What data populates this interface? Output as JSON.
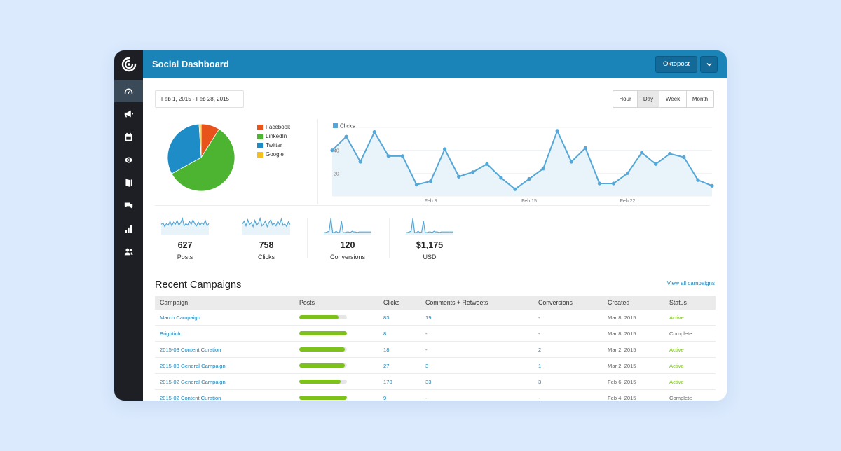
{
  "app": {
    "title": "Social Dashboard",
    "account": "Oktopost"
  },
  "colors": {
    "topbar": "#1a84b8",
    "sidebar": "#1d1f24",
    "accent_green": "#7cc21a",
    "link": "#1a84b8"
  },
  "sidebar": {
    "items": [
      {
        "icon": "dashboard-gauge-icon",
        "active": true
      },
      {
        "icon": "megaphone-icon",
        "active": false
      },
      {
        "icon": "calendar-icon",
        "active": false
      },
      {
        "icon": "eye-icon",
        "active": false
      },
      {
        "icon": "book-icon",
        "active": false
      },
      {
        "icon": "chat-bubbles-icon",
        "active": false
      },
      {
        "icon": "bar-chart-icon",
        "active": false
      },
      {
        "icon": "users-icon",
        "active": false
      }
    ]
  },
  "filters": {
    "date_range": "Feb 1, 2015 - Feb 28, 2015",
    "ranges": [
      {
        "label": "Hour",
        "active": false
      },
      {
        "label": "Day",
        "active": true
      },
      {
        "label": "Week",
        "active": false
      },
      {
        "label": "Month",
        "active": false
      }
    ]
  },
  "pie_chart": {
    "chart_data": {
      "type": "pie",
      "slices": [
        {
          "label": "Facebook",
          "value": 9,
          "color": "#e8531c"
        },
        {
          "label": "LinkedIn",
          "value": 58,
          "color": "#4db431"
        },
        {
          "label": "Twitter",
          "value": 32,
          "color": "#1d8cc7"
        },
        {
          "label": "Google",
          "value": 1,
          "color": "#f5bf1f"
        }
      ]
    }
  },
  "line_chart": {
    "chart_data": {
      "type": "area",
      "series": [
        {
          "name": "Clicks",
          "color": "#54a7d6",
          "values": [
            40,
            52,
            30,
            56,
            35,
            35,
            10,
            13,
            41,
            17,
            21,
            28,
            16,
            6,
            15,
            24,
            57,
            30,
            42,
            11,
            11,
            20,
            38,
            28,
            37,
            34,
            14,
            9
          ]
        }
      ],
      "x_tick_labels": [
        {
          "label": "Feb 8",
          "day_index": 7
        },
        {
          "label": "Feb 15",
          "day_index": 14
        },
        {
          "label": "Feb 22",
          "day_index": 21
        }
      ],
      "y_tick_labels": [
        20,
        40
      ],
      "ylim": [
        0,
        60
      ],
      "grid": true,
      "legend": "top-left"
    }
  },
  "stats": [
    {
      "value": "627",
      "label": "Posts",
      "spark": [
        14,
        16,
        11,
        15,
        13,
        18,
        12,
        17,
        14,
        19,
        13,
        16,
        22,
        12,
        15,
        13,
        18,
        14,
        20,
        15,
        12,
        17,
        13,
        16,
        14,
        19,
        12,
        15
      ]
    },
    {
      "value": "758",
      "label": "Clicks",
      "spark": [
        16,
        20,
        13,
        22,
        15,
        18,
        12,
        21,
        14,
        17,
        24,
        13,
        16,
        20,
        12,
        18,
        22,
        14,
        17,
        13,
        20,
        15,
        23,
        14,
        16,
        12,
        19,
        15
      ]
    },
    {
      "value": "120",
      "label": "Conversions",
      "spark": [
        3,
        3,
        4,
        5,
        24,
        3,
        3,
        5,
        3,
        4,
        20,
        3,
        3,
        4,
        4,
        3,
        5,
        4,
        4,
        3,
        4,
        4,
        4,
        4,
        4,
        4,
        4,
        4
      ]
    },
    {
      "value": "$1,175",
      "label": "USD",
      "spark": [
        3,
        3,
        4,
        5,
        24,
        3,
        3,
        5,
        3,
        4,
        20,
        3,
        3,
        4,
        4,
        3,
        5,
        4,
        4,
        3,
        4,
        4,
        4,
        4,
        4,
        4,
        4,
        4
      ]
    }
  ],
  "campaigns": {
    "title": "Recent Campaigns",
    "view_all": "View all campaigns",
    "columns": [
      "Campaign",
      "Posts",
      "Clicks",
      "Comments + Retweets",
      "Conversions",
      "Created",
      "Status"
    ],
    "rows": [
      {
        "name": "March Campaign",
        "posts_fraction": 0.82,
        "clicks": "83",
        "comments": "19",
        "conversions": "-",
        "created": "Mar 8, 2015",
        "status": "Active"
      },
      {
        "name": "Brightinfo",
        "posts_fraction": 1.0,
        "clicks": "8",
        "comments": "-",
        "conversions": "-",
        "created": "Mar 8, 2015",
        "status": "Complete"
      },
      {
        "name": "2015-03 Content Curation",
        "posts_fraction": 0.96,
        "clicks": "18",
        "comments": "-",
        "conversions": "2",
        "created": "Mar 2, 2015",
        "status": "Active"
      },
      {
        "name": "2015-03 General Campaign",
        "posts_fraction": 0.96,
        "clicks": "27",
        "comments": "3",
        "conversions": "1",
        "created": "Mar 2, 2015",
        "status": "Active"
      },
      {
        "name": "2015-02 General Campaign",
        "posts_fraction": 0.87,
        "clicks": "170",
        "comments": "33",
        "conversions": "3",
        "created": "Feb 6, 2015",
        "status": "Active"
      },
      {
        "name": "2015-02 Content Curation",
        "posts_fraction": 1.0,
        "clicks": "9",
        "comments": "-",
        "conversions": "-",
        "created": "Feb 4, 2015",
        "status": "Complete"
      }
    ]
  }
}
